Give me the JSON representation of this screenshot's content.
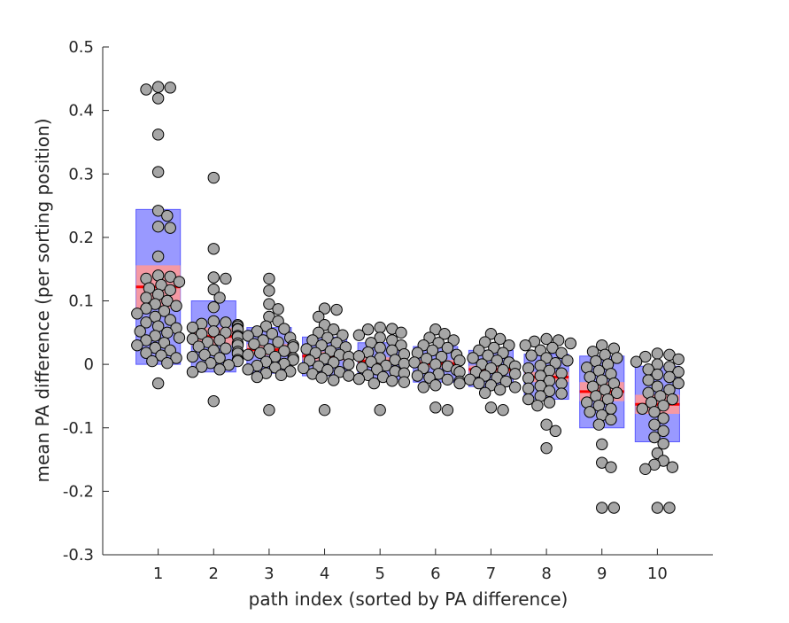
{
  "chart_data": {
    "type": "scatter",
    "title": "",
    "xlabel": "path index (sorted by PA difference)",
    "ylabel": "mean PA difference (per sorting position)",
    "xlim": [
      0,
      11
    ],
    "ylim": [
      -0.3,
      0.5
    ],
    "grid": false,
    "legend": "none",
    "x_ticks": [
      "1",
      "2",
      "3",
      "4",
      "5",
      "6",
      "7",
      "8",
      "9",
      "10"
    ],
    "y_ticks": [
      "-0.3",
      "-0.2",
      "-0.1",
      "0",
      "0.1",
      "0.2",
      "0.3",
      "0.4",
      "0.5"
    ],
    "colors": {
      "sd_band": "#8080ff",
      "sem_band": "#ff9999",
      "mean_line": "#ff0000",
      "marker_fill": "#a6a6a6",
      "marker_edge": "#000000",
      "axis": "#262626"
    },
    "groups": [
      {
        "x": 1,
        "mean": 0.122,
        "sem_lo": 0.088,
        "sem_hi": 0.156,
        "sd_lo": 0.0,
        "sd_hi": 0.244,
        "points": [
          0.436,
          0.433,
          0.437,
          0.419,
          0.362,
          0.303,
          0.242,
          0.234,
          0.217,
          0.215,
          0.17,
          0.14,
          0.138,
          0.135,
          0.13,
          0.125,
          0.12,
          0.117,
          0.11,
          0.105,
          0.1,
          0.095,
          0.092,
          0.088,
          0.084,
          0.08,
          0.075,
          0.07,
          0.066,
          0.06,
          0.057,
          0.052,
          0.05,
          0.045,
          0.042,
          0.038,
          0.034,
          0.03,
          0.026,
          0.022,
          0.018,
          0.014,
          0.01,
          0.005,
          0.002,
          -0.03
        ]
      },
      {
        "x": 2,
        "mean": 0.044,
        "sem_lo": 0.03,
        "sem_hi": 0.058,
        "sd_lo": -0.012,
        "sd_hi": 0.1,
        "points": [
          0.294,
          0.182,
          0.137,
          0.135,
          0.118,
          0.105,
          0.09,
          0.068,
          0.066,
          0.064,
          0.062,
          0.06,
          0.058,
          0.056,
          0.055,
          0.052,
          0.05,
          0.048,
          0.045,
          0.043,
          0.04,
          0.038,
          0.035,
          0.033,
          0.03,
          0.028,
          0.025,
          0.022,
          0.02,
          0.017,
          0.015,
          0.012,
          0.01,
          0.007,
          0.005,
          0.002,
          -0.001,
          -0.004,
          -0.008,
          -0.012,
          -0.058
        ]
      },
      {
        "x": 3,
        "mean": 0.023,
        "sem_lo": 0.014,
        "sem_hi": 0.032,
        "sd_lo": -0.014,
        "sd_hi": 0.058,
        "points": [
          0.135,
          0.116,
          0.095,
          0.087,
          0.075,
          0.068,
          0.06,
          0.056,
          0.052,
          0.048,
          0.045,
          0.042,
          0.038,
          0.035,
          0.032,
          0.03,
          0.027,
          0.024,
          0.021,
          0.018,
          0.015,
          0.012,
          0.01,
          0.007,
          0.004,
          0.001,
          -0.002,
          -0.005,
          -0.008,
          -0.011,
          -0.014,
          -0.017,
          -0.02,
          -0.072
        ]
      },
      {
        "x": 4,
        "mean": 0.013,
        "sem_lo": 0.006,
        "sem_hi": 0.02,
        "sd_lo": -0.018,
        "sd_hi": 0.043,
        "points": [
          0.088,
          0.086,
          0.075,
          0.062,
          0.055,
          0.05,
          0.046,
          0.042,
          0.038,
          0.034,
          0.03,
          0.027,
          0.024,
          0.021,
          0.018,
          0.015,
          0.012,
          0.009,
          0.006,
          0.003,
          0.0,
          -0.003,
          -0.006,
          -0.009,
          -0.012,
          -0.015,
          -0.018,
          -0.021,
          -0.025,
          -0.072
        ]
      },
      {
        "x": 5,
        "mean": 0.005,
        "sem_lo": -0.001,
        "sem_hi": 0.011,
        "sd_lo": -0.024,
        "sd_hi": 0.034,
        "points": [
          0.058,
          0.056,
          0.055,
          0.05,
          0.046,
          0.042,
          0.038,
          0.034,
          0.03,
          0.026,
          0.022,
          0.019,
          0.016,
          0.013,
          0.01,
          0.007,
          0.004,
          0.001,
          -0.002,
          -0.005,
          -0.008,
          -0.011,
          -0.014,
          -0.017,
          -0.02,
          -0.023,
          -0.026,
          -0.028,
          -0.03,
          -0.072
        ]
      },
      {
        "x": 6,
        "mean": 0.001,
        "sem_lo": -0.005,
        "sem_hi": 0.007,
        "sd_lo": -0.028,
        "sd_hi": 0.028,
        "points": [
          0.055,
          0.048,
          0.042,
          0.038,
          0.034,
          0.03,
          0.026,
          0.022,
          0.018,
          0.015,
          0.012,
          0.009,
          0.006,
          0.003,
          0.0,
          -0.003,
          -0.006,
          -0.009,
          -0.012,
          -0.015,
          -0.018,
          -0.021,
          -0.024,
          -0.027,
          -0.03,
          -0.033,
          -0.036,
          -0.068,
          -0.072
        ]
      },
      {
        "x": 7,
        "mean": -0.008,
        "sem_lo": -0.014,
        "sem_hi": -0.002,
        "sd_lo": -0.035,
        "sd_hi": 0.022,
        "points": [
          0.048,
          0.04,
          0.035,
          0.03,
          0.026,
          0.022,
          0.018,
          0.014,
          0.01,
          0.006,
          0.003,
          0.0,
          -0.003,
          -0.006,
          -0.009,
          -0.012,
          -0.015,
          -0.018,
          -0.021,
          -0.024,
          -0.027,
          -0.03,
          -0.033,
          -0.036,
          -0.04,
          -0.045,
          -0.068,
          -0.072
        ]
      },
      {
        "x": 8,
        "mean": -0.02,
        "sem_lo": -0.028,
        "sem_hi": -0.012,
        "sd_lo": -0.055,
        "sd_hi": 0.016,
        "points": [
          0.04,
          0.038,
          0.036,
          0.033,
          0.03,
          0.026,
          0.022,
          0.018,
          0.014,
          0.01,
          0.006,
          0.002,
          -0.002,
          -0.006,
          -0.01,
          -0.014,
          -0.018,
          -0.022,
          -0.026,
          -0.03,
          -0.034,
          -0.038,
          -0.042,
          -0.046,
          -0.05,
          -0.055,
          -0.06,
          -0.065,
          -0.095,
          -0.105,
          -0.132
        ]
      },
      {
        "x": 9,
        "mean": -0.043,
        "sem_lo": -0.058,
        "sem_hi": -0.028,
        "sd_lo": -0.1,
        "sd_hi": 0.013,
        "points": [
          0.03,
          0.025,
          0.02,
          0.015,
          0.01,
          0.005,
          0.0,
          -0.005,
          -0.01,
          -0.015,
          -0.02,
          -0.025,
          -0.03,
          -0.035,
          -0.04,
          -0.045,
          -0.05,
          -0.055,
          -0.06,
          -0.065,
          -0.07,
          -0.075,
          -0.08,
          -0.087,
          -0.095,
          -0.126,
          -0.155,
          -0.162,
          -0.226,
          -0.226
        ]
      },
      {
        "x": 10,
        "mean": -0.063,
        "sem_lo": -0.078,
        "sem_hi": -0.048,
        "sd_lo": -0.122,
        "sd_hi": -0.003,
        "points": [
          0.017,
          0.015,
          0.012,
          0.008,
          0.004,
          0.0,
          -0.004,
          -0.008,
          -0.012,
          -0.016,
          -0.02,
          -0.025,
          -0.03,
          -0.035,
          -0.04,
          -0.045,
          -0.05,
          -0.055,
          -0.06,
          -0.065,
          -0.07,
          -0.075,
          -0.085,
          -0.095,
          -0.105,
          -0.115,
          -0.125,
          -0.14,
          -0.152,
          -0.158,
          -0.162,
          -0.165,
          -0.226,
          -0.226
        ]
      }
    ]
  }
}
